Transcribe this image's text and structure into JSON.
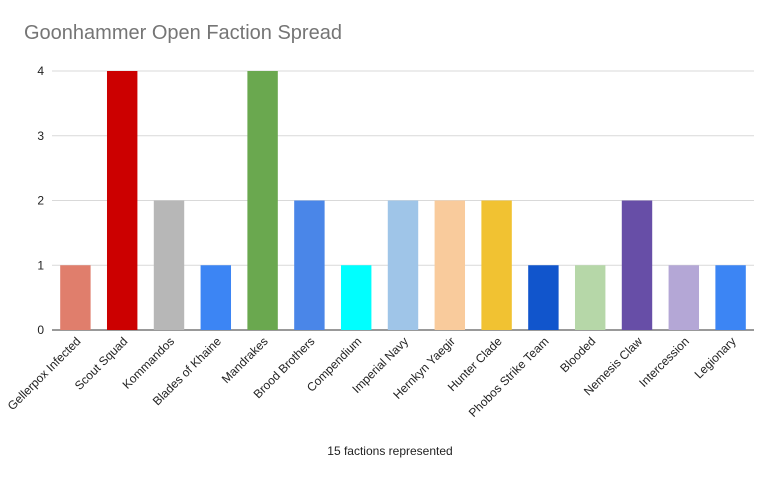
{
  "chart_data": {
    "type": "bar",
    "title": "Goonhammer Open Faction Spread",
    "xlabel": "15 factions represented",
    "ylabel": "",
    "ylim": [
      0,
      4
    ],
    "yticks": [
      0,
      1,
      2,
      3,
      4
    ],
    "grid": true,
    "legend": "none",
    "categories": [
      "Gellerpox Infected",
      "Scout Squad",
      "Kommandos",
      "Blades of Khaine",
      "Mandrakes",
      "Brood Brothers",
      "Compendium",
      "Imperial Navy",
      "Hernkyn Yaegir",
      "Hunter Clade",
      "Phobos Strike Team",
      "Blooded",
      "Nemesis Claw",
      "Intercession",
      "Legionary"
    ],
    "values": [
      1,
      4,
      2,
      1,
      4,
      2,
      1,
      2,
      2,
      2,
      1,
      1,
      2,
      1,
      1
    ],
    "colors": [
      "#e07e6c",
      "#cc0000",
      "#b7b7b7",
      "#3c85f4",
      "#6aa84f",
      "#4a86e8",
      "#00ffff",
      "#9fc5e8",
      "#f9cb9c",
      "#f1c232",
      "#1155cc",
      "#b6d7a8",
      "#674ea7",
      "#b4a7d6",
      "#3c85f4"
    ]
  }
}
